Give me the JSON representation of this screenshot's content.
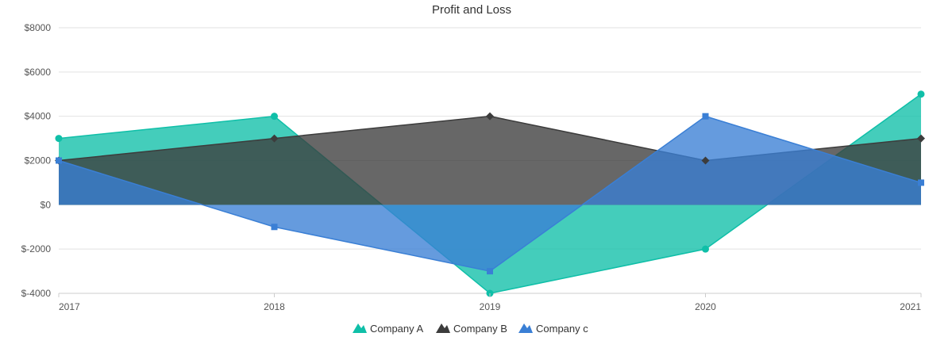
{
  "chart_data": {
    "type": "area",
    "title": "Profit and Loss",
    "xlabel": "",
    "ylabel": "",
    "categories": [
      "2017",
      "2018",
      "2019",
      "2020",
      "2021"
    ],
    "ylim": [
      -4000,
      8000
    ],
    "yticks": [
      -4000,
      -2000,
      0,
      2000,
      4000,
      6000,
      8000
    ],
    "ytick_labels": [
      "$-4000",
      "$-2000",
      "$0",
      "$2000",
      "$4000",
      "$6000",
      "$8000"
    ],
    "grid": true,
    "legend_position": "bottom-center",
    "series": [
      {
        "name": "Company A",
        "values": [
          3000,
          4000,
          -4000,
          -2000,
          5000
        ],
        "color": "#0fbfa8",
        "marker": "circle"
      },
      {
        "name": "Company B",
        "values": [
          2000,
          3000,
          4000,
          2000,
          3000
        ],
        "color": "#3c3c3c",
        "marker": "diamond"
      },
      {
        "name": "Company c",
        "values": [
          2000,
          -1000,
          -3000,
          4000,
          1000
        ],
        "color": "#3a7fd5",
        "marker": "square"
      }
    ]
  }
}
